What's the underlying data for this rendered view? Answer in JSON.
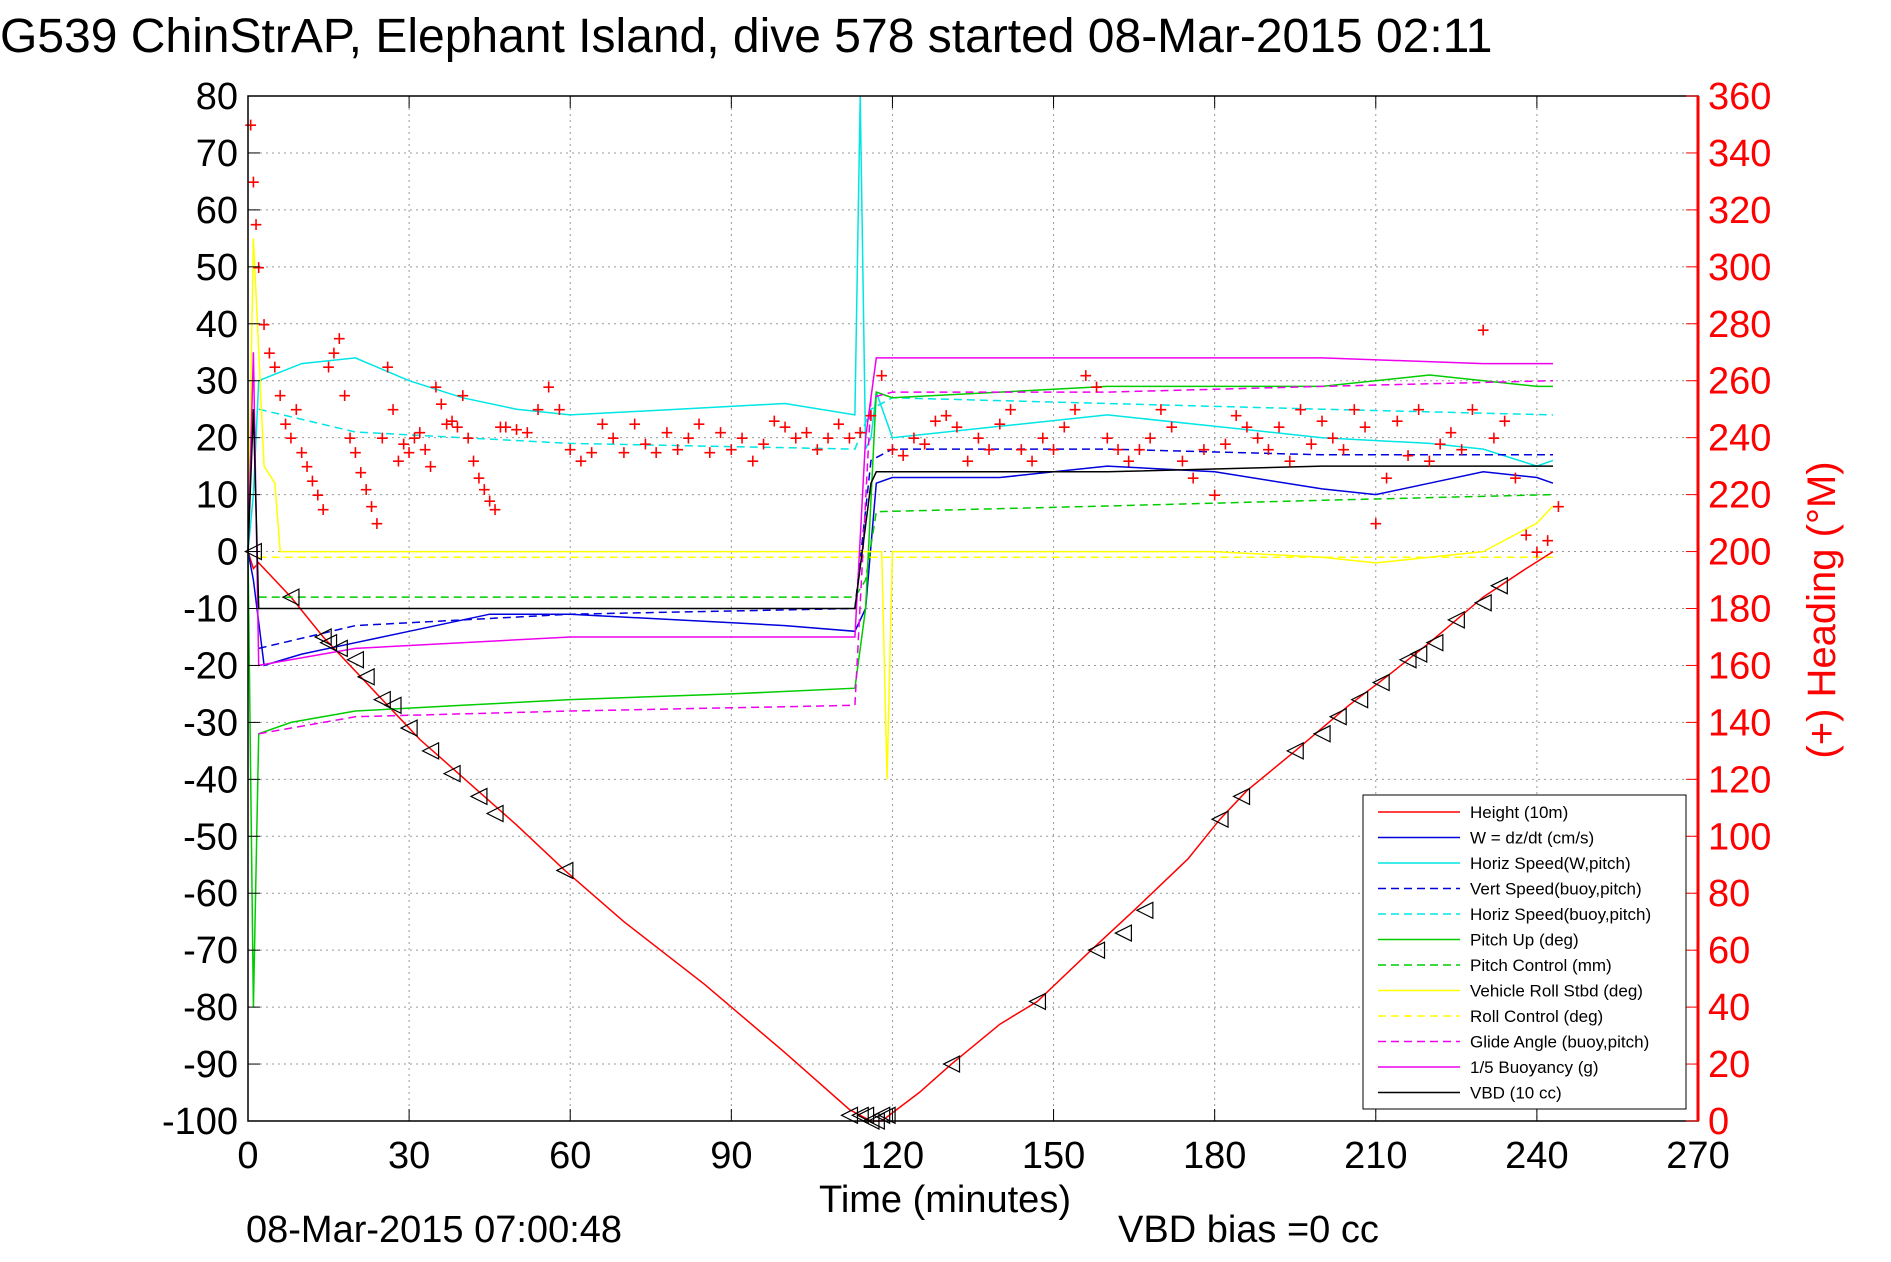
{
  "chart_data": {
    "type": "line",
    "title": "G539 ChinStrAP, Elephant Island, dive 578 started 08-Mar-2015 02:11",
    "xlabel": "Time (minutes)",
    "ylabel_right": "(+) Heading (°M)",
    "footer_left": "08-Mar-2015 07:00:48",
    "footer_right": "VBD bias =0 cc",
    "xlim": [
      0,
      270
    ],
    "ylim": [
      -100,
      80
    ],
    "ylim_right": [
      0,
      360
    ],
    "x_ticks": [
      "0",
      "30",
      "60",
      "90",
      "120",
      "150",
      "180",
      "210",
      "240",
      "270"
    ],
    "y_ticks": [
      "80",
      "70",
      "60",
      "50",
      "40",
      "30",
      "20",
      "10",
      "0",
      "-10",
      "-20",
      "-30",
      "-40",
      "-50",
      "-60",
      "-70",
      "-80",
      "-90",
      "-100"
    ],
    "y_ticks_right": [
      "360",
      "340",
      "320",
      "300",
      "280",
      "260",
      "240",
      "220",
      "200",
      "180",
      "160",
      "140",
      "120",
      "100",
      "80",
      "60",
      "40",
      "20",
      "0"
    ],
    "grid": true,
    "legend_position": "bottom-right",
    "colors": {
      "heading": "#ff0000",
      "right_axis": "#ff0000",
      "height": "#ff0000",
      "w": "#0000dd",
      "horiz_speed": "#00e5e5",
      "pitch": "#00cc00",
      "roll": "#ffff00",
      "glide": "#ee00ee",
      "vbd": "#000000"
    },
    "series": [
      {
        "name": "Height (10m)",
        "color": "#ff0000",
        "dash": false,
        "x": [
          0,
          1,
          2,
          8,
          14,
          20,
          26,
          32,
          38,
          44,
          50,
          59,
          70,
          85,
          100,
          112,
          114,
          116,
          118,
          125,
          131,
          140,
          147,
          157,
          165,
          175,
          181,
          186,
          195,
          200,
          205,
          212,
          220,
          230,
          238,
          243
        ],
        "y": [
          0,
          -3,
          -2,
          -8,
          -15,
          -21,
          -27,
          -33,
          -38,
          -43,
          -48,
          -56,
          -65,
          -76,
          -88,
          -98,
          -99,
          -100,
          -100,
          -95,
          -90,
          -83,
          -79,
          -70,
          -63,
          -54,
          -47,
          -42,
          -35,
          -31,
          -27,
          -22,
          -16,
          -8,
          -3,
          0
        ]
      },
      {
        "name": "W = dz/dt (cm/s)",
        "color": "#0000dd",
        "dash": false,
        "x": [
          0,
          1,
          3,
          10,
          20,
          30,
          45,
          60,
          80,
          100,
          113,
          115,
          117,
          120,
          140,
          160,
          180,
          200,
          210,
          220,
          230,
          240,
          243
        ],
        "y": [
          0,
          -5,
          -20,
          -18,
          -16,
          -14,
          -11,
          -11,
          -12,
          -13,
          -14,
          -10,
          12,
          13,
          13,
          15,
          14,
          11,
          10,
          12,
          14,
          13,
          12
        ]
      },
      {
        "name": "Horiz Speed(W,pitch)",
        "color": "#00e5e5",
        "dash": false,
        "x": [
          0,
          1,
          2,
          10,
          20,
          30,
          40,
          50,
          60,
          80,
          100,
          113,
          114,
          115,
          116,
          117,
          120,
          140,
          160,
          180,
          200,
          220,
          230,
          240,
          243
        ],
        "y": [
          0,
          10,
          30,
          33,
          34,
          30,
          27,
          25,
          24,
          25,
          26,
          24,
          80,
          18,
          20,
          28,
          20,
          22,
          24,
          22,
          20,
          19,
          18,
          15,
          16
        ]
      },
      {
        "name": "Vert Speed(buoy,pitch)",
        "color": "#0000dd",
        "dash": true,
        "x": [
          2,
          20,
          60,
          113,
          116,
          120,
          160,
          200,
          243
        ],
        "y": [
          -17,
          -13,
          -11,
          -10,
          16,
          18,
          18,
          17,
          17
        ]
      },
      {
        "name": "Horiz Speed(buoy,pitch)",
        "color": "#00e5e5",
        "dash": true,
        "x": [
          2,
          20,
          60,
          113,
          116,
          120,
          160,
          200,
          243
        ],
        "y": [
          25,
          21,
          19,
          18,
          25,
          27,
          26,
          25,
          24
        ]
      },
      {
        "name": "Pitch Up (deg)",
        "color": "#00cc00",
        "dash": false,
        "x": [
          0,
          1,
          2,
          8,
          20,
          40,
          60,
          90,
          113,
          115,
          117,
          120,
          140,
          160,
          180,
          200,
          220,
          240,
          243
        ],
        "y": [
          0,
          -80,
          -32,
          -30,
          -28,
          -27,
          -26,
          -25,
          -24,
          -10,
          28,
          27,
          28,
          29,
          29,
          29,
          31,
          29,
          29
        ]
      },
      {
        "name": "Pitch Control (mm)",
        "color": "#00cc00",
        "dash": true,
        "x": [
          2,
          113,
          115,
          117,
          160,
          200,
          243
        ],
        "y": [
          -8,
          -8,
          -5,
          7,
          8,
          9,
          10
        ]
      },
      {
        "name": "Vehicle Roll Stbd (deg)",
        "color": "#ffff00",
        "dash": false,
        "x": [
          0,
          1,
          3,
          5,
          6,
          10,
          20,
          40,
          60,
          90,
          113,
          117,
          118,
          119,
          120,
          140,
          160,
          180,
          200,
          210,
          220,
          230,
          240,
          243
        ],
        "y": [
          0,
          55,
          15,
          12,
          0,
          0,
          0,
          0,
          0,
          0,
          0,
          0,
          0,
          -40,
          0,
          0,
          0,
          0,
          -1,
          -2,
          -1,
          0,
          5,
          8
        ]
      },
      {
        "name": "Roll Control (deg)",
        "color": "#ffff00",
        "dash": true,
        "x": [
          2,
          113,
          243
        ],
        "y": [
          -1,
          -1,
          -1
        ]
      },
      {
        "name": "Glide Angle (buoy,pitch)",
        "color": "#ee00ee",
        "dash": true,
        "x": [
          2,
          20,
          60,
          113,
          116,
          120,
          160,
          200,
          243
        ],
        "y": [
          -32,
          -29,
          -28,
          -27,
          27,
          28,
          28,
          29,
          30
        ]
      },
      {
        "name": "1/5 Buoyancy (g)",
        "color": "#ee00ee",
        "dash": false,
        "x": [
          0,
          1,
          2,
          20,
          60,
          113,
          115,
          117,
          160,
          200,
          230,
          243
        ],
        "y": [
          0,
          35,
          -20,
          -17,
          -15,
          -15,
          20,
          34,
          34,
          34,
          33,
          33
        ]
      },
      {
        "name": "VBD (10 cc)",
        "color": "#000000",
        "dash": false,
        "x": [
          0,
          1,
          2,
          113,
          116,
          117,
          160,
          200,
          243
        ],
        "y": [
          0,
          25,
          -10,
          -10,
          12,
          14,
          14,
          15,
          15
        ]
      }
    ],
    "heading_series": {
      "color": "#ff0000",
      "marker": "+",
      "axis": "right",
      "x": [
        0.5,
        1,
        1.5,
        2,
        3,
        4,
        5,
        6,
        7,
        8,
        9,
        10,
        11,
        12,
        13,
        14,
        15,
        16,
        17,
        18,
        19,
        20,
        21,
        22,
        23,
        24,
        25,
        26,
        27,
        28,
        29,
        30,
        31,
        32,
        33,
        34,
        35,
        36,
        37,
        38,
        39,
        40,
        41,
        42,
        43,
        44,
        45,
        46,
        47,
        48,
        50,
        52,
        54,
        56,
        58,
        60,
        62,
        64,
        66,
        68,
        70,
        72,
        74,
        76,
        78,
        80,
        82,
        84,
        86,
        88,
        90,
        92,
        94,
        96,
        98,
        100,
        102,
        104,
        106,
        108,
        110,
        112,
        114,
        116,
        118,
        120,
        122,
        124,
        126,
        128,
        130,
        132,
        134,
        136,
        138,
        140,
        142,
        144,
        146,
        148,
        150,
        152,
        154,
        156,
        158,
        160,
        162,
        164,
        166,
        168,
        170,
        172,
        174,
        176,
        178,
        180,
        182,
        184,
        186,
        188,
        190,
        192,
        194,
        196,
        198,
        200,
        202,
        204,
        206,
        208,
        210,
        212,
        214,
        216,
        218,
        220,
        222,
        224,
        226,
        228,
        230,
        232,
        234,
        236,
        238,
        240,
        242,
        244
      ],
      "y": [
        350,
        330,
        315,
        300,
        280,
        270,
        265,
        255,
        245,
        240,
        250,
        235,
        230,
        225,
        220,
        215,
        265,
        270,
        275,
        255,
        240,
        235,
        228,
        222,
        216,
        210,
        240,
        265,
        250,
        232,
        238,
        235,
        240,
        242,
        236,
        230,
        258,
        252,
        245,
        246,
        244,
        255,
        240,
        232,
        226,
        222,
        218,
        215,
        244,
        244,
        243,
        242,
        250,
        258,
        250,
        236,
        232,
        235,
        245,
        240,
        235,
        245,
        238,
        235,
        242,
        236,
        240,
        245,
        235,
        242,
        236,
        240,
        232,
        238,
        246,
        244,
        240,
        242,
        236,
        240,
        245,
        240,
        242,
        248,
        262,
        236,
        234,
        240,
        238,
        246,
        248,
        244,
        232,
        240,
        236,
        245,
        250,
        236,
        232,
        240,
        236,
        244,
        250,
        262,
        258,
        240,
        236,
        232,
        236,
        240,
        250,
        244,
        232,
        226,
        236,
        220,
        238,
        248,
        244,
        240,
        236,
        244,
        232,
        250,
        238,
        246,
        240,
        236,
        250,
        244,
        210,
        226,
        246,
        234,
        250,
        232,
        238,
        242,
        236,
        250,
        278,
        240,
        246,
        226,
        206,
        200,
        204,
        216
      ]
    },
    "height_markers": {
      "x": [
        1,
        8,
        14,
        15,
        17,
        20,
        22,
        25,
        27,
        30,
        34,
        38,
        43,
        46,
        59,
        112,
        114,
        115,
        116,
        117,
        118,
        119,
        131,
        147,
        158,
        163,
        167,
        181,
        185,
        195,
        200,
        203,
        207,
        211,
        216,
        218,
        221,
        225,
        230,
        233
      ],
      "y": [
        0,
        -8,
        -15,
        -16,
        -17,
        -19,
        -22,
        -26,
        -27,
        -31,
        -35,
        -39,
        -43,
        -46,
        -56,
        -99,
        -99,
        -99,
        -100,
        -100,
        -99,
        -99,
        -90,
        -79,
        -70,
        -67,
        -63,
        -47,
        -43,
        -35,
        -32,
        -29,
        -26,
        -23,
        -19,
        -18,
        -16,
        -12,
        -9,
        -6
      ]
    },
    "legend": [
      "Height (10m)",
      "W = dz/dt (cm/s)",
      "Horiz Speed(W,pitch)",
      "Vert Speed(buoy,pitch)",
      "Horiz Speed(buoy,pitch)",
      "Pitch Up (deg)",
      "Pitch Control (mm)",
      "Vehicle Roll Stbd (deg)",
      "Roll Control (deg)",
      "Glide Angle (buoy,pitch)",
      "1/5 Buoyancy (g)",
      "VBD (10 cc)"
    ]
  }
}
